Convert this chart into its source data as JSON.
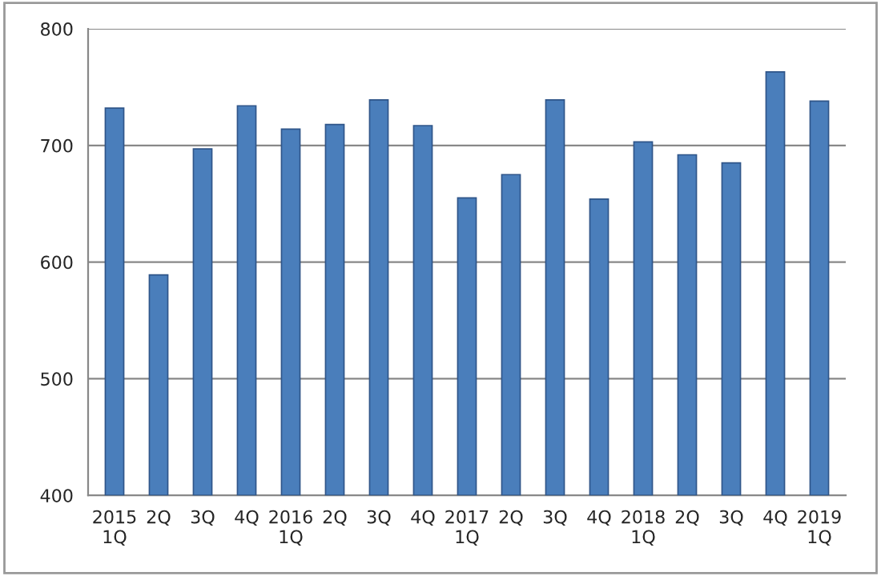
{
  "chart_data": {
    "type": "bar",
    "categories": [
      "2015\n1Q",
      "2Q",
      "3Q",
      "4Q",
      "2016\n1Q",
      "2Q",
      "3Q",
      "4Q",
      "2017\n1Q",
      "2Q",
      "3Q",
      "4Q",
      "2018\n1Q",
      "2Q",
      "3Q",
      "4Q",
      "2019\n1Q"
    ],
    "values": [
      732,
      589,
      697,
      734,
      714,
      718,
      739,
      717,
      655,
      675,
      739,
      654,
      703,
      692,
      685,
      763,
      738
    ],
    "color": "#4a7ebb",
    "ylim": [
      400,
      800
    ],
    "yticks": [
      400,
      500,
      600,
      700,
      800
    ],
    "grid": "y"
  }
}
